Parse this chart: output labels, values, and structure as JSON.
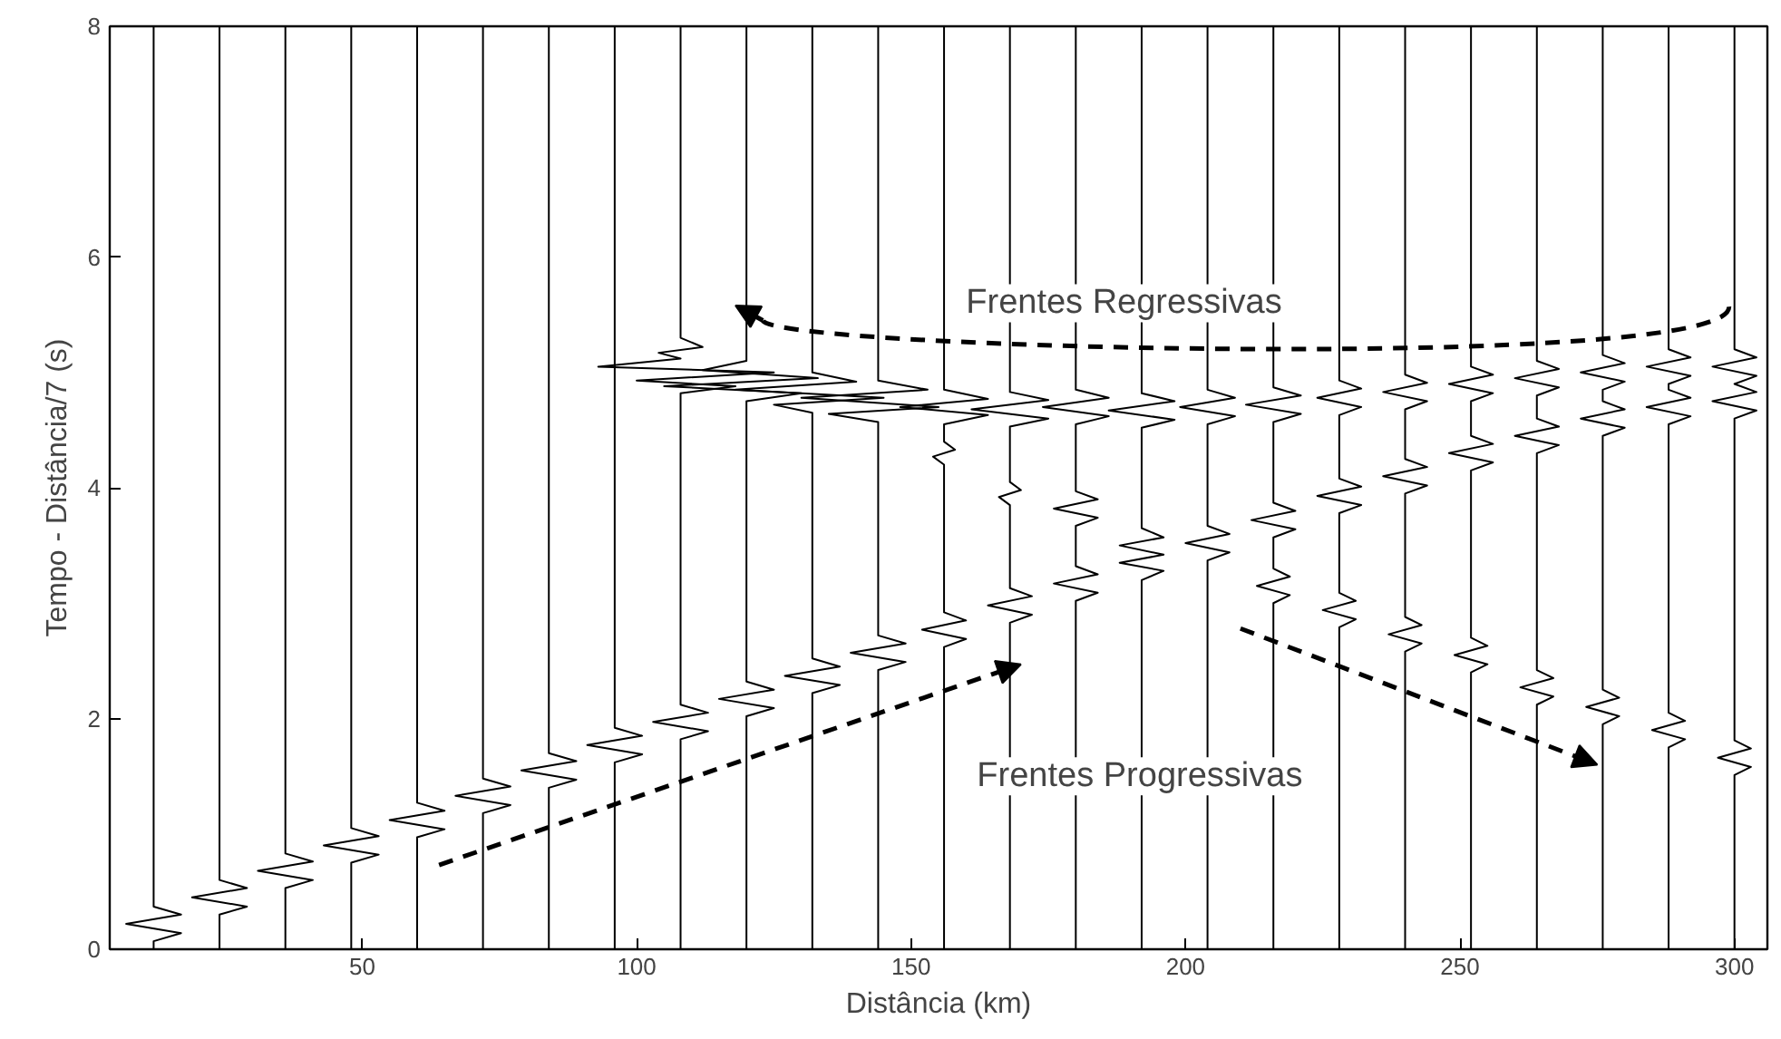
{
  "chart_data": {
    "type": "line",
    "xlabel": "Distância (km)",
    "ylabel": "Tempo - Distância/7 (s)",
    "xlim": [
      4,
      306
    ],
    "ylim": [
      0,
      8
    ],
    "xticks": [
      50,
      100,
      150,
      200,
      250,
      300
    ],
    "yticks": [
      0,
      2,
      4,
      6,
      8
    ],
    "grid": false,
    "annotations": [
      "Frentes Regressivas",
      "Frentes Progressivas"
    ],
    "series": [
      {
        "color": "#000000",
        "x": [
          12,
          12,
          17,
          7,
          17,
          12,
          12
        ],
        "values": [
          8,
          0.37,
          0.3,
          0.22,
          0.14,
          0.07,
          0
        ]
      },
      {
        "color": "#000000",
        "x": [
          24,
          24,
          29,
          19,
          29,
          24,
          24
        ],
        "values": [
          8,
          0.6,
          0.53,
          0.45,
          0.37,
          0.3,
          0
        ]
      },
      {
        "color": "#000000",
        "x": [
          36,
          36,
          41,
          31,
          41,
          36,
          36
        ],
        "values": [
          8,
          0.83,
          0.76,
          0.68,
          0.6,
          0.53,
          0
        ]
      },
      {
        "color": "#000000",
        "x": [
          48,
          48,
          53,
          43,
          53,
          48,
          48
        ],
        "values": [
          8,
          1.05,
          0.98,
          0.9,
          0.82,
          0.75,
          0
        ]
      },
      {
        "color": "#000000",
        "x": [
          60,
          60,
          65,
          55,
          65,
          60,
          60
        ],
        "values": [
          8,
          1.27,
          1.2,
          1.12,
          1.04,
          0.97,
          0
        ]
      },
      {
        "color": "#000000",
        "x": [
          72,
          72,
          77,
          67,
          77,
          72,
          72
        ],
        "values": [
          8,
          1.48,
          1.41,
          1.33,
          1.25,
          1.18,
          0
        ]
      },
      {
        "color": "#000000",
        "x": [
          84,
          84,
          89,
          79,
          89,
          84,
          84
        ],
        "values": [
          8,
          1.7,
          1.63,
          1.55,
          1.47,
          1.4,
          0
        ]
      },
      {
        "color": "#000000",
        "x": [
          96,
          96,
          101,
          91,
          101,
          96,
          96
        ],
        "values": [
          8,
          1.92,
          1.85,
          1.77,
          1.69,
          1.62,
          0
        ]
      },
      {
        "color": "#000000",
        "x": [
          108,
          108,
          112,
          104,
          108,
          93,
          125,
          100,
          118,
          108,
          108,
          113,
          103,
          113,
          108,
          108
        ],
        "values": [
          8,
          5.3,
          5.22,
          5.17,
          5.12,
          5.05,
          5.0,
          4.93,
          4.88,
          4.82,
          2.12,
          2.05,
          1.97,
          1.89,
          1.82,
          0
        ]
      },
      {
        "color": "#000000",
        "x": [
          120,
          120,
          112,
          133,
          105,
          130,
          120,
          120,
          125,
          115,
          125,
          120,
          120
        ],
        "values": [
          8,
          5.1,
          5.02,
          4.95,
          4.88,
          4.82,
          4.75,
          2.32,
          2.25,
          2.17,
          2.09,
          2.02,
          0
        ]
      },
      {
        "color": "#000000",
        "x": [
          132,
          132,
          140,
          118,
          145,
          125,
          132,
          132,
          137,
          127,
          137,
          132,
          132
        ],
        "values": [
          8,
          5.0,
          4.92,
          4.85,
          4.78,
          4.72,
          4.65,
          2.52,
          2.45,
          2.37,
          2.29,
          2.22,
          0
        ]
      },
      {
        "color": "#000000",
        "x": [
          144,
          144,
          153,
          130,
          155,
          135,
          144,
          144,
          149,
          139,
          149,
          144,
          144
        ],
        "values": [
          8,
          4.93,
          4.85,
          4.78,
          4.7,
          4.64,
          4.57,
          2.72,
          2.65,
          2.57,
          2.49,
          2.42,
          0
        ]
      },
      {
        "color": "#000000",
        "x": [
          156,
          156,
          164,
          148,
          164,
          156,
          156,
          158,
          154,
          156,
          156,
          160,
          152,
          160,
          156,
          156
        ],
        "values": [
          8,
          4.85,
          4.77,
          4.7,
          4.63,
          4.55,
          4.4,
          4.33,
          4.27,
          4.2,
          2.92,
          2.85,
          2.77,
          2.69,
          2.62,
          0
        ]
      },
      {
        "color": "#000000",
        "x": [
          168,
          168,
          175,
          161,
          175,
          168,
          168,
          170,
          166,
          168,
          168,
          172,
          164,
          172,
          168,
          168
        ],
        "values": [
          8,
          4.83,
          4.76,
          4.68,
          4.6,
          4.53,
          4.05,
          3.98,
          3.92,
          3.85,
          3.13,
          3.06,
          2.98,
          2.9,
          2.83,
          0
        ]
      },
      {
        "color": "#000000",
        "x": [
          180,
          180,
          186,
          174,
          186,
          180,
          180,
          184,
          176,
          184,
          180,
          180,
          184,
          176,
          184,
          180,
          180
        ],
        "values": [
          8,
          4.85,
          4.78,
          4.7,
          4.62,
          4.55,
          3.97,
          3.9,
          3.82,
          3.74,
          3.67,
          3.32,
          3.25,
          3.17,
          3.09,
          3.02,
          0
        ]
      },
      {
        "color": "#000000",
        "x": [
          192,
          192,
          198,
          186,
          198,
          192,
          192,
          196,
          188,
          196,
          188,
          196,
          192,
          192
        ],
        "values": [
          8,
          4.82,
          4.75,
          4.67,
          4.59,
          4.52,
          3.65,
          3.57,
          3.5,
          3.42,
          3.35,
          3.28,
          3.2,
          0
        ]
      },
      {
        "color": "#000000",
        "x": [
          204,
          204,
          209,
          199,
          209,
          204,
          204,
          208,
          200,
          208,
          204,
          204
        ],
        "values": [
          8,
          4.85,
          4.78,
          4.7,
          4.62,
          4.55,
          3.67,
          3.6,
          3.52,
          3.44,
          3.37,
          0
        ]
      },
      {
        "color": "#000000",
        "x": [
          216,
          216,
          221,
          211,
          221,
          216,
          216,
          220,
          212,
          220,
          216,
          216,
          219,
          213,
          219,
          216,
          216
        ],
        "values": [
          8,
          4.87,
          4.8,
          4.72,
          4.64,
          4.57,
          3.87,
          3.8,
          3.72,
          3.64,
          3.57,
          3.3,
          3.23,
          3.15,
          3.07,
          3.0,
          0
        ]
      },
      {
        "color": "#000000",
        "x": [
          228,
          228,
          232,
          224,
          232,
          228,
          228,
          232,
          224,
          232,
          228,
          228,
          231,
          225,
          231,
          228,
          228
        ],
        "values": [
          8,
          4.93,
          4.86,
          4.78,
          4.7,
          4.63,
          4.08,
          4.01,
          3.93,
          3.85,
          3.78,
          3.09,
          3.02,
          2.94,
          2.86,
          2.79,
          0
        ]
      },
      {
        "color": "#000000",
        "x": [
          240,
          240,
          244,
          236,
          244,
          240,
          240,
          244,
          236,
          244,
          240,
          240,
          243,
          237,
          243,
          240,
          240
        ],
        "values": [
          8,
          4.98,
          4.91,
          4.83,
          4.75,
          4.68,
          4.25,
          4.18,
          4.1,
          4.02,
          3.95,
          2.88,
          2.81,
          2.73,
          2.65,
          2.58,
          0
        ]
      },
      {
        "color": "#000000",
        "x": [
          252,
          252,
          256,
          248,
          256,
          252,
          252,
          256,
          248,
          256,
          252,
          252,
          255,
          249,
          255,
          252,
          252
        ],
        "values": [
          8,
          5.05,
          4.98,
          4.9,
          4.82,
          4.75,
          4.45,
          4.38,
          4.3,
          4.22,
          4.15,
          2.7,
          2.63,
          2.55,
          2.47,
          2.4,
          0
        ]
      },
      {
        "color": "#000000",
        "x": [
          264,
          264,
          268,
          260,
          268,
          264,
          264,
          268,
          260,
          268,
          264,
          264,
          267,
          261,
          267,
          264,
          264
        ],
        "values": [
          8,
          5.1,
          5.03,
          4.95,
          4.87,
          4.8,
          4.6,
          4.53,
          4.45,
          4.37,
          4.3,
          2.42,
          2.35,
          2.27,
          2.19,
          2.12,
          0
        ]
      },
      {
        "color": "#000000",
        "x": [
          276,
          276,
          280,
          272,
          280,
          276,
          276,
          280,
          272,
          280,
          276,
          276,
          279,
          273,
          279,
          276,
          276
        ],
        "values": [
          8,
          5.15,
          5.08,
          5.0,
          4.92,
          4.85,
          4.75,
          4.68,
          4.6,
          4.52,
          4.45,
          2.25,
          2.18,
          2.1,
          2.02,
          1.95,
          0
        ]
      },
      {
        "color": "#000000",
        "x": [
          288,
          288,
          292,
          284,
          292,
          288,
          288,
          292,
          284,
          292,
          288,
          288,
          291,
          285,
          291,
          288,
          288
        ],
        "values": [
          8,
          5.2,
          5.13,
          5.05,
          4.97,
          4.9,
          4.85,
          4.78,
          4.7,
          4.62,
          4.55,
          2.05,
          1.98,
          1.9,
          1.82,
          1.75,
          0
        ]
      },
      {
        "color": "#000000",
        "x": [
          300,
          300,
          304,
          296,
          304,
          300,
          300,
          304,
          296,
          304,
          300,
          300,
          303,
          297,
          303,
          300,
          300
        ],
        "values": [
          8,
          5.2,
          5.13,
          5.05,
          4.97,
          4.9,
          4.9,
          4.83,
          4.75,
          4.67,
          4.6,
          1.81,
          1.74,
          1.66,
          1.58,
          1.51,
          0
        ]
      }
    ]
  }
}
